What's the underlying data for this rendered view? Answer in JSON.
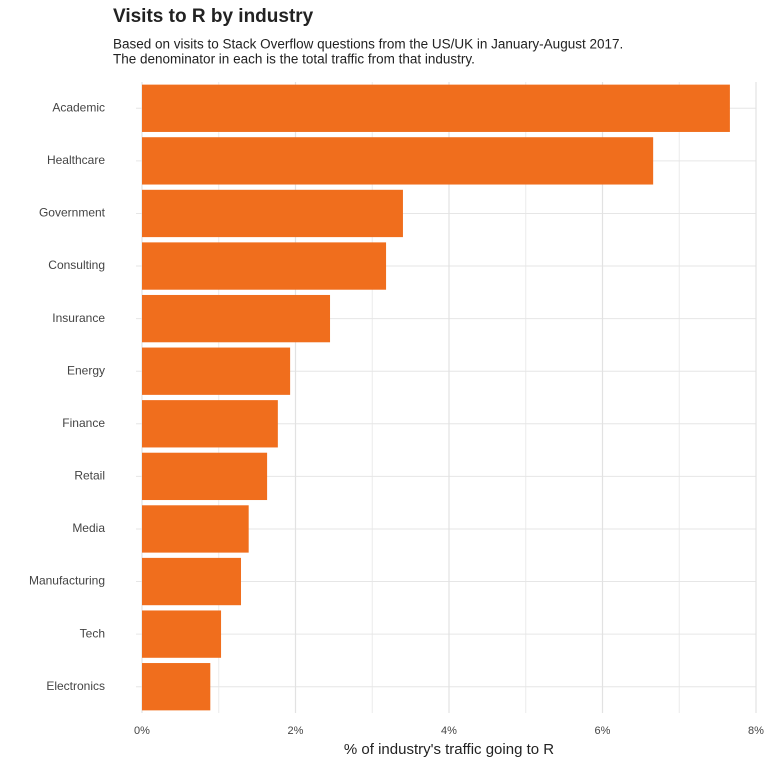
{
  "chart_data": {
    "type": "bar",
    "orientation": "horizontal",
    "title": "Visits to R by industry",
    "subtitle": [
      "Based on visits to Stack Overflow questions from the US/UK in January-August 2017.",
      "The denominator in each is the total traffic from that industry."
    ],
    "x_label": "% of industry's traffic going to R",
    "categories": [
      "Academic",
      "Healthcare",
      "Government",
      "Consulting",
      "Insurance",
      "Energy",
      "Finance",
      "Retail",
      "Media",
      "Manufacturing",
      "Tech",
      "Electronics"
    ],
    "values": [
      7.66,
      6.66,
      3.4,
      3.18,
      2.45,
      1.93,
      1.77,
      1.63,
      1.39,
      1.29,
      1.03,
      0.89
    ],
    "color": "#f06e1d",
    "xlim": [
      0,
      8
    ],
    "xticks": [
      {
        "value": 0,
        "label": "0%"
      },
      {
        "value": 2,
        "label": "2%"
      },
      {
        "value": 4,
        "label": "4%"
      },
      {
        "value": 6,
        "label": "6%"
      },
      {
        "value": 8,
        "label": "8%"
      }
    ],
    "minor_xticks": [
      1,
      3,
      5,
      7
    ],
    "grid": true
  }
}
